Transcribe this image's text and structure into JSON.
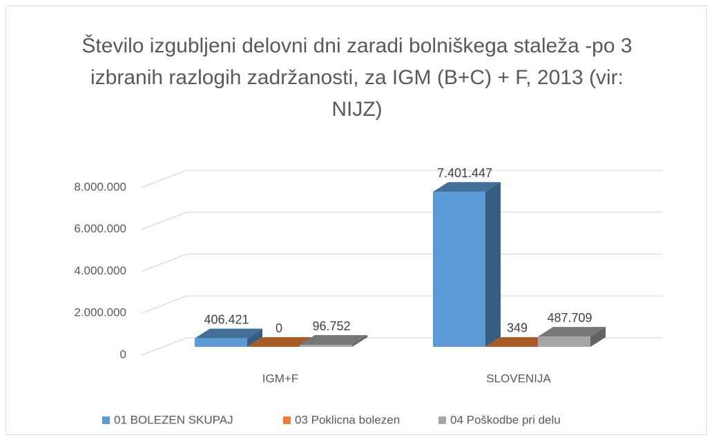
{
  "chart_data": {
    "type": "bar3d",
    "title": "Število izgubljeni delovni dni  zaradi bolniškega staleža -po 3 izbranih razlogih zadržanosti, za IGM (B+C) + F, 2013 (vir: NIJZ)",
    "categories": [
      "IGM+F",
      "SLOVENIJA"
    ],
    "series": [
      {
        "name": "01 BOLEZEN SKUPAJ",
        "color": "#5b9bd5",
        "values": [
          406421,
          7401447
        ],
        "value_labels": [
          "406.421",
          "7.401.447"
        ]
      },
      {
        "name": "03 Poklicna bolezen",
        "color": "#ed7d31",
        "values": [
          0,
          349
        ],
        "value_labels": [
          "0",
          "349"
        ]
      },
      {
        "name": "04 Poškodbe pri delu",
        "color": "#a5a5a5",
        "values": [
          96752,
          487709
        ],
        "value_labels": [
          "96.752",
          "487.709"
        ]
      }
    ],
    "ylim": [
      0,
      8000000
    ],
    "yticks": [
      0,
      {
        "value": 2000000,
        "label": "2.000.000"
      },
      {
        "value": 4000000,
        "label": "4.000.000"
      },
      {
        "value": 6000000,
        "label": "6.000.000"
      },
      {
        "value": 8000000,
        "label": "8.000.000"
      }
    ],
    "grid": true,
    "legend": "bottom"
  }
}
